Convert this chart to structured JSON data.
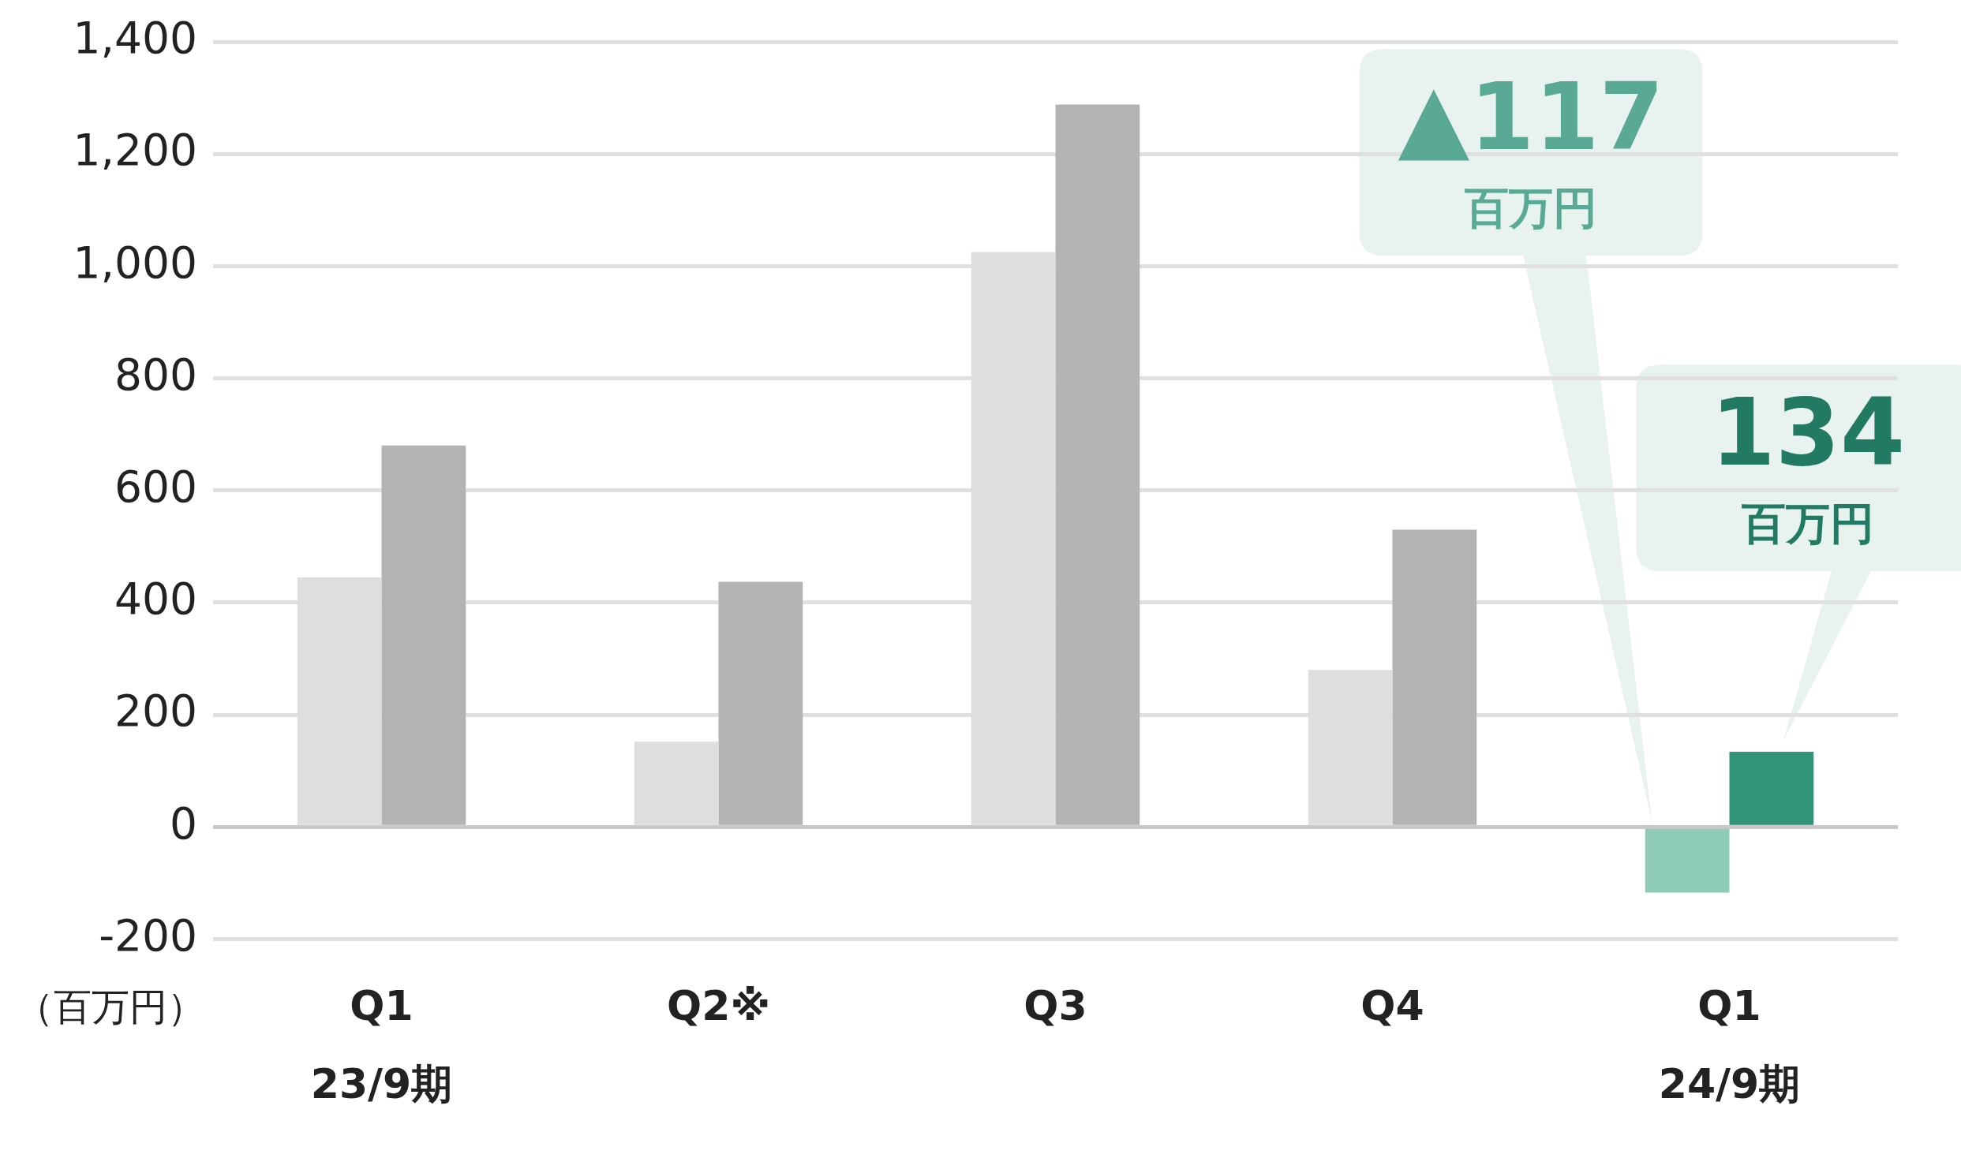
{
  "chart_data": {
    "type": "bar",
    "ylabel": "（百万円）",
    "categories": [
      "Q1\n23/9期",
      "Q2※",
      "Q3",
      "Q4",
      "Q1\n24/9期"
    ],
    "series": [
      {
        "colors": [
          "#dedede",
          "#dedede",
          "#dedede",
          "#dedede",
          "#8ecbb8"
        ],
        "values": [
          445,
          152,
          1025,
          280,
          -117
        ]
      },
      {
        "colors": [
          "#b3b3b3",
          "#b3b3b3",
          "#b3b3b3",
          "#b3b3b3",
          "#31957a"
        ],
        "values": [
          680,
          437,
          1288,
          530,
          134
        ]
      }
    ],
    "annotations": [
      "▲117\n百万円",
      "134\n百万円"
    ],
    "ylim": [
      -200,
      1400
    ],
    "yticks": [
      -200,
      0,
      200,
      400,
      600,
      800,
      {
        "value": 1000,
        "label": "1,000"
      },
      {
        "value": 1200,
        "label": "1,200"
      },
      {
        "value": 1400,
        "label": "1,400"
      }
    ],
    "grid": "y",
    "legend": false
  }
}
